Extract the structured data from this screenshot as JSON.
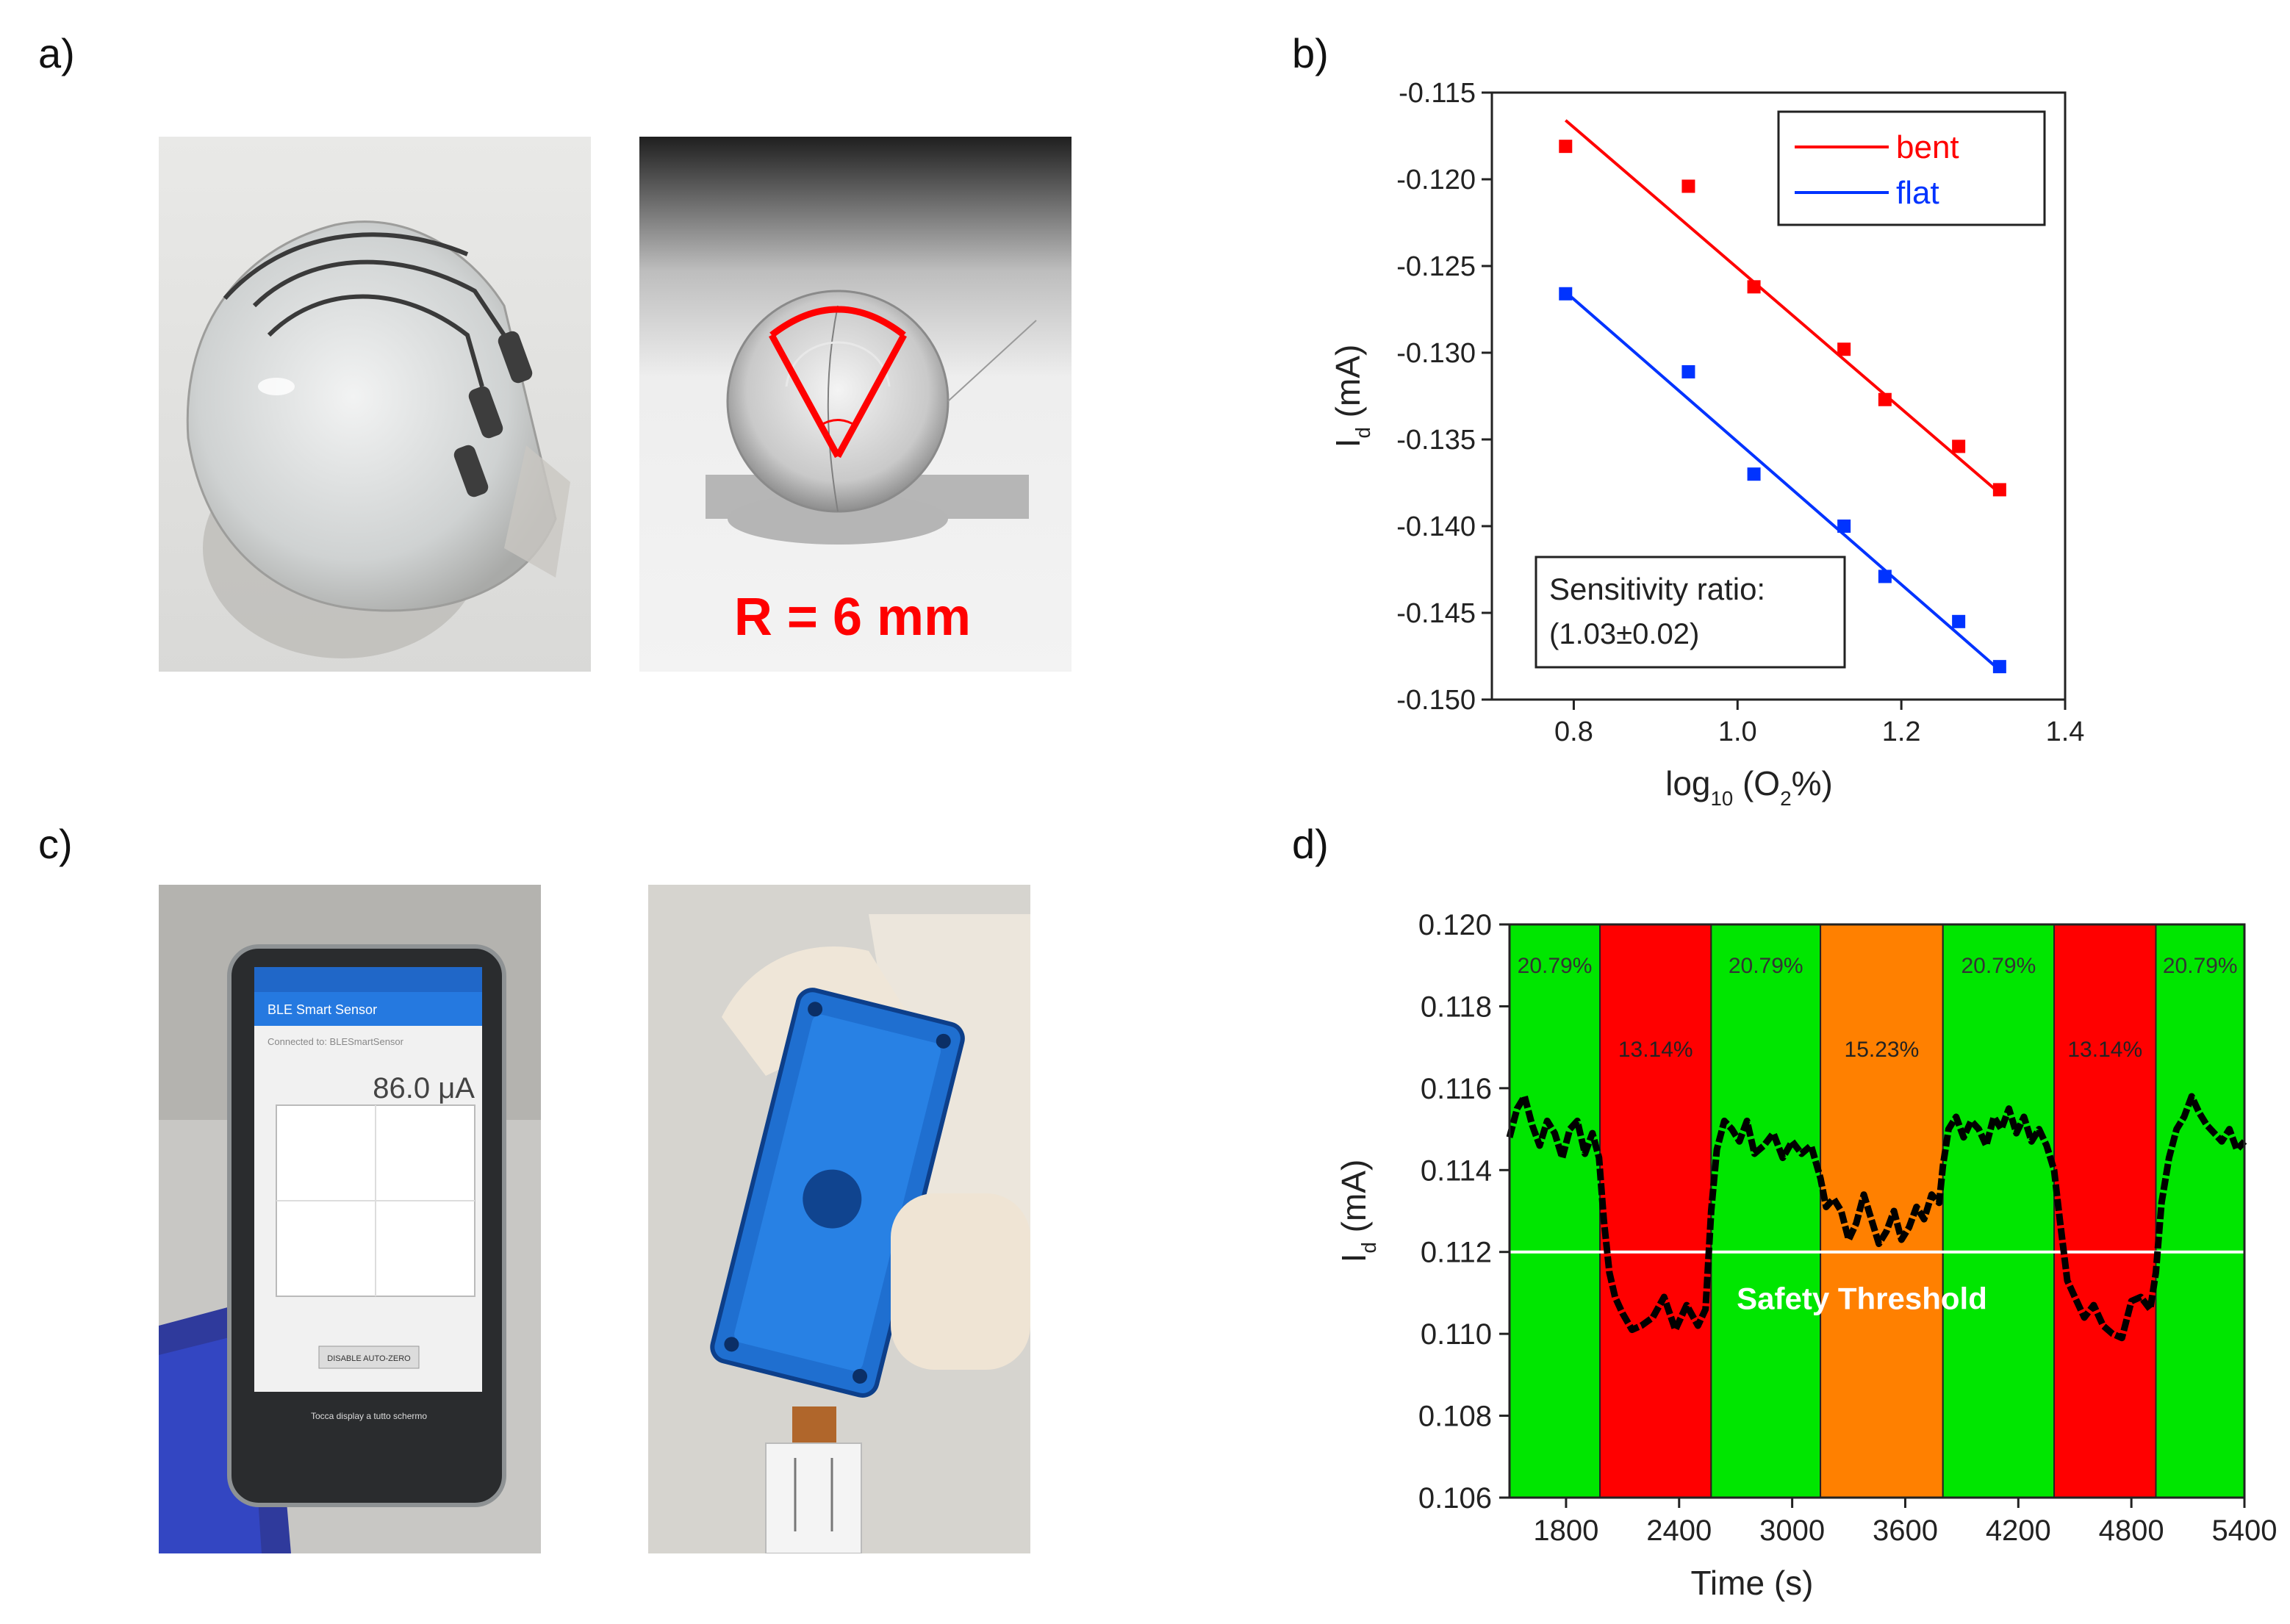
{
  "panels": {
    "a": "a)",
    "b": "b)",
    "c": "c)",
    "d": "d)"
  },
  "photos": {
    "a_right_annotation": "R = 6 mm",
    "c_phone": {
      "app_title": "BLE Smart Sensor",
      "connected": "Connected to: BLESmartSensor",
      "reading": "86.0 μA",
      "button": "DISABLE AUTO-ZERO",
      "footer": "Tocca display a tutto schermo"
    }
  },
  "colors": {
    "bent": "#ff0000",
    "flat": "#0033ff",
    "green": "#00e600",
    "red": "#ff0000",
    "orange": "#ff8000",
    "threshold": "#ffffff"
  },
  "chart_data": [
    {
      "id": "b",
      "type": "scatter",
      "xlabel": "log10 (O2%)",
      "ylabel": "Id (mA)",
      "xlim": [
        0.7,
        1.4
      ],
      "ylim": [
        -0.15,
        -0.115
      ],
      "xticks": [
        "0.8",
        "1.0",
        "1.2",
        "1.4"
      ],
      "yticks": [
        "-0.115",
        "-0.120",
        "-0.125",
        "-0.130",
        "-0.135",
        "-0.140",
        "-0.145",
        "-0.150"
      ],
      "legend_position": "top-right",
      "series": [
        {
          "name": "bent",
          "color": "#ff0000",
          "x": [
            0.79,
            0.94,
            1.02,
            1.13,
            1.18,
            1.27,
            1.32
          ],
          "y": [
            -0.1181,
            -0.1204,
            -0.1262,
            -0.1298,
            -0.1327,
            -0.1354,
            -0.1379
          ],
          "fit": [
            [
              0.79,
              -0.1166
            ],
            [
              1.32,
              -0.1381
            ]
          ]
        },
        {
          "name": "flat",
          "color": "#0033ff",
          "x": [
            0.79,
            0.94,
            1.02,
            1.13,
            1.18,
            1.27,
            1.32
          ],
          "y": [
            -0.1266,
            -0.1311,
            -0.137,
            -0.14,
            -0.1429,
            -0.1455,
            -0.1481
          ],
          "fit": [
            [
              0.79,
              -0.1265
            ],
            [
              1.32,
              -0.1483
            ]
          ]
        }
      ],
      "annotation_lines": [
        "Sensitivity ratio:",
        "(1.03±0.02)"
      ]
    },
    {
      "id": "d",
      "type": "line",
      "xlabel": "Time (s)",
      "ylabel": "Id (mA)",
      "xlim": [
        1500,
        5400
      ],
      "ylim": [
        0.106,
        0.12
      ],
      "xticks": [
        "1800",
        "2400",
        "3000",
        "3600",
        "4200",
        "4800",
        "5400"
      ],
      "yticks": [
        "0.106",
        "0.108",
        "0.110",
        "0.112",
        "0.114",
        "0.116",
        "0.118",
        "0.120"
      ],
      "bands": [
        {
          "x0": 1500,
          "x1": 1980,
          "color": "green",
          "label": "20.79%"
        },
        {
          "x0": 1980,
          "x1": 2570,
          "color": "red",
          "label": "13.14%"
        },
        {
          "x0": 2570,
          "x1": 3150,
          "color": "green",
          "label": "20.79%"
        },
        {
          "x0": 3150,
          "x1": 3800,
          "color": "orange",
          "label": "15.23%"
        },
        {
          "x0": 3800,
          "x1": 4390,
          "color": "green",
          "label": "20.79%"
        },
        {
          "x0": 4390,
          "x1": 4930,
          "color": "red",
          "label": "13.14%"
        },
        {
          "x0": 4930,
          "x1": 5400,
          "color": "green",
          "label": "20.79%"
        }
      ],
      "threshold": {
        "y": 0.112,
        "label": "Safety Threshold"
      },
      "series": [
        {
          "x": [
            1500,
            1540,
            1580,
            1620,
            1660,
            1700,
            1740,
            1780,
            1820,
            1860,
            1900,
            1940,
            1975,
            2000,
            2030,
            2060,
            2100,
            2150,
            2200,
            2260,
            2320,
            2380,
            2440,
            2500,
            2540,
            2570,
            2600,
            2640,
            2680,
            2720,
            2760,
            2800,
            2850,
            2900,
            2950,
            3000,
            3050,
            3100,
            3150,
            3180,
            3220,
            3260,
            3300,
            3340,
            3380,
            3420,
            3460,
            3500,
            3540,
            3580,
            3620,
            3660,
            3700,
            3740,
            3780,
            3800,
            3830,
            3870,
            3910,
            3950,
            3990,
            4030,
            4070,
            4110,
            4150,
            4190,
            4230,
            4270,
            4310,
            4350,
            4390,
            4420,
            4460,
            4500,
            4550,
            4600,
            4650,
            4700,
            4750,
            4800,
            4850,
            4900,
            4930,
            4960,
            5000,
            5040,
            5080,
            5120,
            5160,
            5200,
            5240,
            5280,
            5320,
            5360,
            5400
          ],
          "y": [
            0.1148,
            0.1155,
            0.1158,
            0.1151,
            0.1146,
            0.1152,
            0.1149,
            0.1143,
            0.115,
            0.1152,
            0.1144,
            0.1149,
            0.1143,
            0.1128,
            0.1115,
            0.1109,
            0.1105,
            0.1101,
            0.1102,
            0.1104,
            0.1109,
            0.1101,
            0.1107,
            0.1102,
            0.1106,
            0.113,
            0.1145,
            0.1152,
            0.115,
            0.1147,
            0.1152,
            0.1144,
            0.1146,
            0.1149,
            0.1143,
            0.1147,
            0.1144,
            0.1146,
            0.1138,
            0.1131,
            0.1133,
            0.113,
            0.1123,
            0.1127,
            0.1134,
            0.1128,
            0.1122,
            0.1125,
            0.113,
            0.1123,
            0.1126,
            0.1131,
            0.1128,
            0.1134,
            0.1132,
            0.1141,
            0.115,
            0.1153,
            0.1148,
            0.1152,
            0.115,
            0.1146,
            0.1153,
            0.115,
            0.1155,
            0.1149,
            0.1153,
            0.1147,
            0.115,
            0.1146,
            0.114,
            0.1128,
            0.1113,
            0.1109,
            0.1104,
            0.1107,
            0.1102,
            0.11,
            0.1099,
            0.1108,
            0.1109,
            0.1106,
            0.1115,
            0.1132,
            0.1143,
            0.115,
            0.1153,
            0.1158,
            0.1154,
            0.1151,
            0.1149,
            0.1147,
            0.115,
            0.1145,
            0.1147
          ]
        }
      ]
    }
  ]
}
